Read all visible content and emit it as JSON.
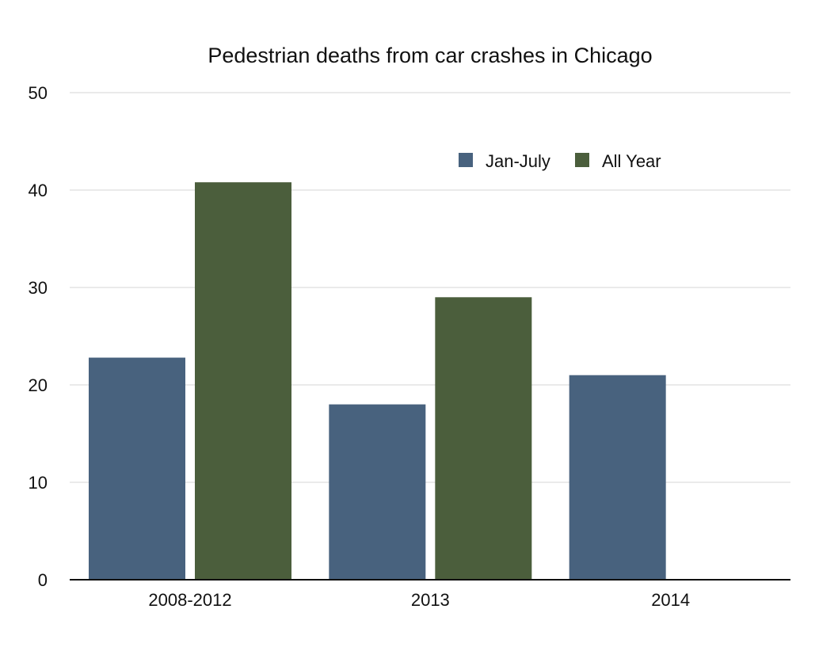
{
  "chart_data": {
    "type": "bar",
    "title": "Pedestrian deaths from car crashes in Chicago",
    "xlabel": "",
    "ylabel": "",
    "categories": [
      "2008-2012",
      "2013",
      "2014"
    ],
    "series": [
      {
        "name": "Jan-July",
        "values": [
          22.8,
          18,
          21
        ],
        "color": "#48627e"
      },
      {
        "name": "All Year",
        "values": [
          40.8,
          29,
          null
        ],
        "color": "#4b5e3c"
      }
    ],
    "ylim": [
      0,
      50
    ],
    "yticks": [
      "0",
      "10",
      "20",
      "30",
      "40",
      "50"
    ],
    "grid": true,
    "legend_position": "top-right",
    "colors": {
      "grid": "#d4d4d4",
      "axis": "#111111",
      "background": "#ffffff"
    }
  }
}
